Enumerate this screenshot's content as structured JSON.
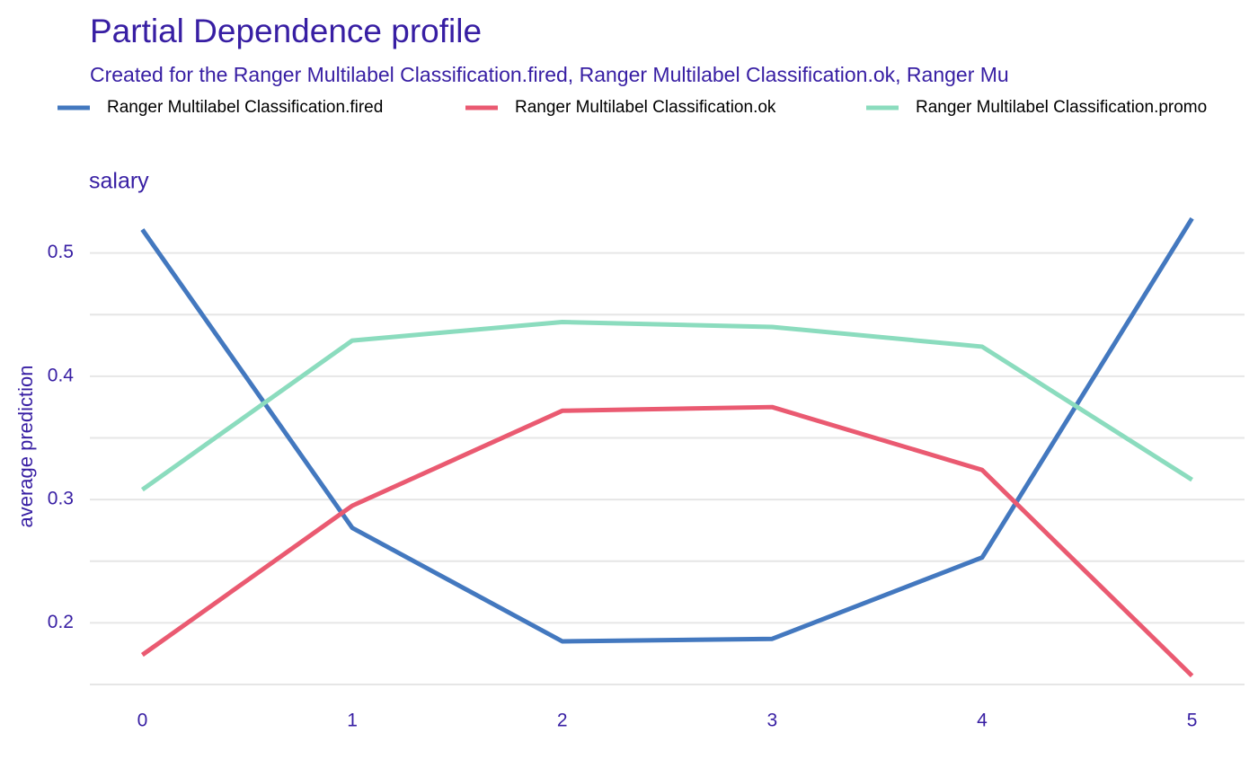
{
  "chart_data": {
    "type": "line",
    "title": "Partial Dependence profile",
    "subtitle": "Created for the Ranger Multilabel Classification.fired, Ranger Multilabel Classification.ok, Ranger Mu",
    "facet_label": "salary",
    "y_label": "average prediction",
    "x": [
      0,
      1,
      2,
      3,
      4,
      5
    ],
    "series": [
      {
        "name": "Ranger Multilabel Classification.fired",
        "color": "#4378bf",
        "values": [
          0.519,
          0.277,
          0.185,
          0.187,
          0.253,
          0.528
        ]
      },
      {
        "name": "Ranger Multilabel Classification.ok",
        "color": "#ea5a71",
        "values": [
          0.174,
          0.295,
          0.372,
          0.375,
          0.324,
          0.157
        ]
      },
      {
        "name": "Ranger Multilabel Classification.promo",
        "color": "#8bdcbe",
        "values": [
          0.308,
          0.429,
          0.444,
          0.44,
          0.424,
          0.316
        ]
      }
    ],
    "xlim": [
      -0.25,
      5.25
    ],
    "xticks": [
      0,
      1,
      2,
      3,
      4,
      5
    ],
    "ylim": [
      0.15,
      0.55
    ],
    "yticks": [
      0.2,
      0.3,
      0.4,
      0.5
    ],
    "y_minor_ticks": [
      0.15,
      0.25,
      0.35,
      0.45
    ],
    "grid": true,
    "legend_position": "top"
  }
}
